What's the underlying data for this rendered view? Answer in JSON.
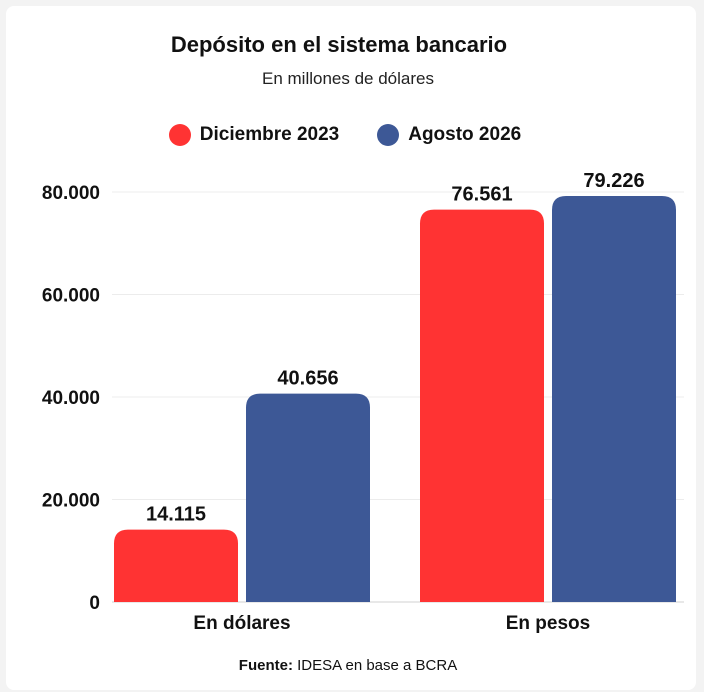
{
  "chart_data": {
    "type": "bar",
    "title": "Depósito en el sistema bancario",
    "subtitle": "En millones de dólares",
    "categories": [
      "En dólares",
      "En pesos"
    ],
    "series": [
      {
        "name": "Diciembre 2023",
        "color": "#ff3333",
        "values": [
          14115,
          76561
        ],
        "labels": [
          "14.115",
          "76.561"
        ]
      },
      {
        "name": "Agosto 2026",
        "color": "#3d5896",
        "values": [
          40656,
          79226
        ],
        "labels": [
          "40.656",
          "79.226"
        ]
      }
    ],
    "yticks": [
      0,
      20000,
      40000,
      60000,
      80000
    ],
    "ytick_labels": [
      "0",
      "20.000",
      "40.000",
      "60.000",
      "80.000"
    ],
    "ylim": [
      0,
      80000
    ],
    "grid": true,
    "legend_position": "top-center"
  },
  "source": {
    "label": "Fuente:",
    "text": "IDESA en base a BCRA"
  }
}
